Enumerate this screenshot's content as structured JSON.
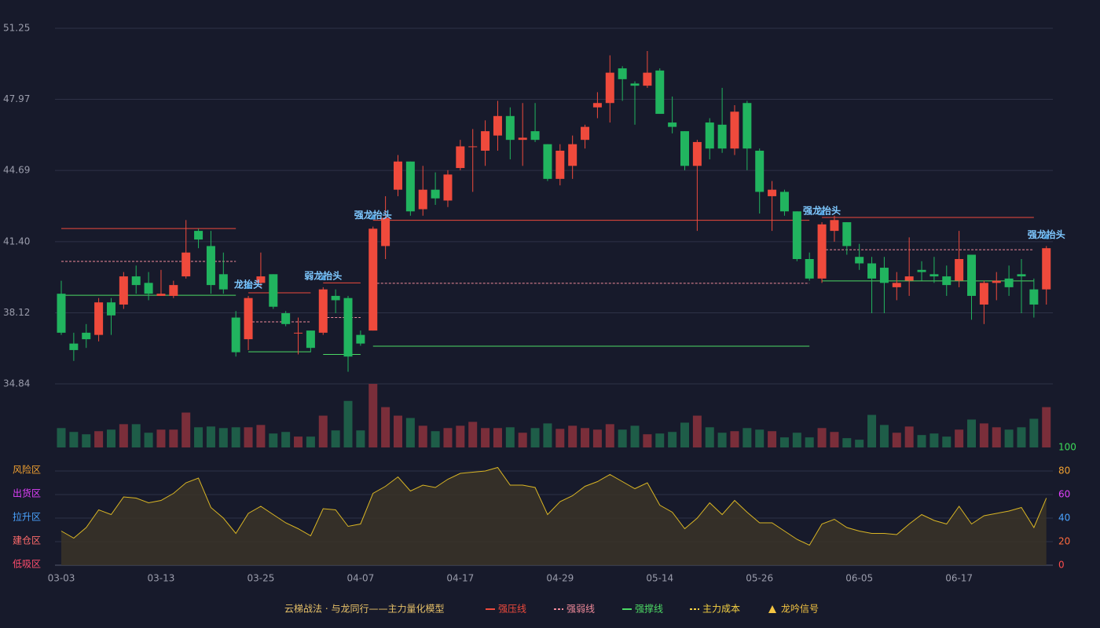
{
  "chart_data": [
    {
      "type": "candlestick",
      "ylim": [
        34.84,
        51.25
      ],
      "yticks": [
        34.84,
        38.12,
        {
          "value": 41.4,
          "label": "41.40"
        },
        44.69,
        47.97,
        51.25
      ],
      "up_color": "#ef4a3c",
      "down_color": "#21b45f",
      "open": [
        39.0,
        36.7,
        37.2,
        37.1,
        38.6,
        38.5,
        39.8,
        39.5,
        38.9,
        38.9,
        39.8,
        41.9,
        41.2,
        39.9,
        37.9,
        36.9,
        39.5,
        39.9,
        38.1,
        37.2,
        37.3,
        37.2,
        38.9,
        38.8,
        37.1,
        37.3,
        41.2,
        43.8,
        45.1,
        42.9,
        43.8,
        43.3,
        44.8,
        45.8,
        45.6,
        46.3,
        47.2,
        46.1,
        46.5,
        45.9,
        44.3,
        44.9,
        46.1,
        47.6,
        47.8,
        49.4,
        48.7,
        48.6,
        49.3,
        46.9,
        46.5,
        44.9,
        46.9,
        46.8,
        45.7,
        47.8,
        45.6,
        43.5,
        43.7,
        42.8,
        40.6,
        39.7,
        41.9,
        42.3,
        40.7,
        40.4,
        40.2,
        39.3,
        39.6,
        40.1,
        39.9,
        39.8,
        39.6,
        40.8,
        38.5,
        39.5,
        39.7,
        39.9,
        39.2,
        39.2
      ],
      "close": [
        37.2,
        36.4,
        36.9,
        38.6,
        38.0,
        39.8,
        39.4,
        39.0,
        39.0,
        39.4,
        40.9,
        41.5,
        39.4,
        39.2,
        36.3,
        38.8,
        39.8,
        38.4,
        37.6,
        37.2,
        36.5,
        39.2,
        38.7,
        36.1,
        36.7,
        42.0,
        42.5,
        45.1,
        42.8,
        43.8,
        43.4,
        44.5,
        45.8,
        45.8,
        46.5,
        47.2,
        46.1,
        46.2,
        46.1,
        44.3,
        45.6,
        45.9,
        46.7,
        47.8,
        49.2,
        48.9,
        48.6,
        49.2,
        47.3,
        46.7,
        44.9,
        46.0,
        45.7,
        45.7,
        47.4,
        45.7,
        43.7,
        43.8,
        42.8,
        40.6,
        39.7,
        42.2,
        42.4,
        41.2,
        40.4,
        39.7,
        39.5,
        39.5,
        39.8,
        40.0,
        39.8,
        39.4,
        40.6,
        38.9,
        39.5,
        39.6,
        39.3,
        39.8,
        38.5,
        41.1
      ],
      "high": [
        39.6,
        37.2,
        37.6,
        38.8,
        38.8,
        40.0,
        40.3,
        40.0,
        40.1,
        39.6,
        42.4,
        42.0,
        41.9,
        40.9,
        38.2,
        38.9,
        40.9,
        39.9,
        38.2,
        37.9,
        37.3,
        39.3,
        39.2,
        38.9,
        37.3,
        42.1,
        43.5,
        45.4,
        45.1,
        44.9,
        44.6,
        44.7,
        46.1,
        46.6,
        47.0,
        47.9,
        47.6,
        47.8,
        47.8,
        45.9,
        45.9,
        46.3,
        46.8,
        48.3,
        50.0,
        49.5,
        48.8,
        50.2,
        49.4,
        48.1,
        46.5,
        46.1,
        47.1,
        48.5,
        47.7,
        47.9,
        45.7,
        44.2,
        43.8,
        42.8,
        40.9,
        42.3,
        42.6,
        42.3,
        41.3,
        40.7,
        40.7,
        40.0,
        41.6,
        40.5,
        40.7,
        40.3,
        41.9,
        40.8,
        39.6,
        40.0,
        40.3,
        40.6,
        39.7,
        41.2
      ],
      "low": [
        37.1,
        35.9,
        36.5,
        36.8,
        37.1,
        38.3,
        39.0,
        38.7,
        38.9,
        38.8,
        39.7,
        41.1,
        39.0,
        39.0,
        36.1,
        36.4,
        39.3,
        38.3,
        37.5,
        36.2,
        36.3,
        37.1,
        38.1,
        35.4,
        36.6,
        37.3,
        40.6,
        43.5,
        42.6,
        42.6,
        43.1,
        43.0,
        44.7,
        43.7,
        44.9,
        45.6,
        45.2,
        44.9,
        46.0,
        44.2,
        44.0,
        44.3,
        45.7,
        47.1,
        46.9,
        47.9,
        46.8,
        48.5,
        47.3,
        46.4,
        44.7,
        41.9,
        45.2,
        45.5,
        45.4,
        44.7,
        42.7,
        41.9,
        42.6,
        40.5,
        39.6,
        39.5,
        41.4,
        40.8,
        40.1,
        38.1,
        38.1,
        38.7,
        38.9,
        39.6,
        39.5,
        38.9,
        39.3,
        37.8,
        37.6,
        38.7,
        38.9,
        38.1,
        37.9,
        38.5
      ],
      "levels": [
        {
          "start": 0,
          "end": 14,
          "pressure": 42.01,
          "weak": 40.49,
          "support": 38.93
        },
        {
          "start": 15,
          "end": 20,
          "pressure": 39.04,
          "weak": 37.7,
          "support": 36.32
        },
        {
          "start": 21,
          "end": 24,
          "pressure": 39.5,
          "weak": 37.9,
          "support": 36.2
        },
        {
          "start": 25,
          "end": 60,
          "pressure": 42.39,
          "weak": 39.48,
          "support": 36.58
        },
        {
          "start": 61,
          "end": 78,
          "pressure": 42.52,
          "weak": 41.03,
          "support": 39.59
        }
      ],
      "signals": [
        {
          "index": 15,
          "label": "龙抬头"
        },
        {
          "index": 21,
          "label": "弱龙抬头"
        },
        {
          "index": 25,
          "label": "强龙抬头"
        },
        {
          "index": 61,
          "label": "强龙抬头"
        },
        {
          "index": 79,
          "label": "强龙抬头"
        }
      ]
    },
    {
      "type": "bar",
      "values": [
        25,
        20,
        17,
        21,
        23,
        30,
        30,
        19,
        23,
        23,
        45,
        26,
        27,
        25,
        26,
        26,
        29,
        18,
        20,
        14,
        14,
        41,
        22,
        60,
        22,
        82,
        52,
        41,
        38,
        28,
        21,
        25,
        28,
        33,
        25,
        25,
        26,
        19,
        25,
        31,
        24,
        28,
        25,
        23,
        30,
        23,
        28,
        17,
        18,
        20,
        32,
        41,
        26,
        19,
        21,
        25,
        23,
        21,
        13,
        19,
        13,
        25,
        20,
        12,
        10,
        42,
        29,
        19,
        27,
        16,
        18,
        14,
        23,
        36,
        31,
        26,
        23,
        26,
        37,
        52
      ]
    },
    {
      "type": "line",
      "categories": [
        "03-03",
        null,
        null,
        null,
        null,
        null,
        null,
        null,
        "03-13",
        null,
        null,
        null,
        null,
        null,
        null,
        null,
        "03-25",
        null,
        null,
        null,
        null,
        null,
        null,
        null,
        "04-07",
        null,
        null,
        null,
        null,
        null,
        null,
        null,
        "04-17",
        null,
        null,
        null,
        null,
        null,
        null,
        null,
        "04-29",
        null,
        null,
        null,
        null,
        null,
        null,
        null,
        "05-14",
        null,
        null,
        null,
        null,
        null,
        null,
        null,
        "05-26",
        null,
        null,
        null,
        null,
        null,
        null,
        null,
        "06-05",
        null,
        null,
        null,
        null,
        null,
        null,
        null,
        "06-17",
        null,
        null,
        null,
        null,
        null,
        null,
        null
      ],
      "values": [
        29,
        23,
        32,
        47,
        43,
        58,
        57,
        53,
        55,
        61,
        70,
        74,
        49,
        40,
        27,
        44,
        50,
        43,
        36,
        31,
        25,
        48,
        47,
        33,
        35,
        61,
        67,
        75,
        63,
        68,
        66,
        73,
        78,
        79,
        80,
        83,
        68,
        68,
        66,
        43,
        54,
        59,
        67,
        71,
        77,
        71,
        65,
        70,
        51,
        45,
        31,
        40,
        53,
        43,
        55,
        45,
        36,
        36,
        29,
        22,
        17,
        35,
        39,
        32,
        29,
        27,
        27,
        26,
        35,
        43,
        38,
        35,
        50,
        35,
        42,
        44,
        46,
        49,
        32,
        57
      ],
      "color": "#d9b524",
      "ylim": [
        0,
        100
      ],
      "yticks": [
        0,
        20,
        40,
        60,
        80,
        100
      ],
      "ytick_colors": [
        "#ff4d4d",
        "#ff6a3d",
        "#4aa3ff",
        "#e040fb",
        "#f0a030",
        "#3ddc5a"
      ],
      "zones": [
        {
          "value": 0,
          "label": "低吸区",
          "color": "#ff4d6d"
        },
        {
          "value": 20,
          "label": "建仓区",
          "color": "#ff6b6b"
        },
        {
          "value": 40,
          "label": "拉升区",
          "color": "#4aa3ff"
        },
        {
          "value": 60,
          "label": "出货区",
          "color": "#e040fb"
        },
        {
          "value": 80,
          "label": "风险区",
          "color": "#f0a030"
        }
      ]
    }
  ],
  "legend": {
    "title": "云梯战法 · 与龙同行——主力量化模型",
    "items": [
      {
        "name": "强压线",
        "color": "#ef4a3c",
        "style": "solid"
      },
      {
        "name": "强弱线",
        "color": "#f08a9a",
        "style": "dashed"
      },
      {
        "name": "强撑线",
        "color": "#4cd964",
        "style": "solid"
      },
      {
        "name": "主力成本",
        "color": "#f5d142",
        "style": "dashed"
      },
      {
        "name": "龙吟信号",
        "color": "#f5c542",
        "style": "triangle"
      }
    ]
  }
}
